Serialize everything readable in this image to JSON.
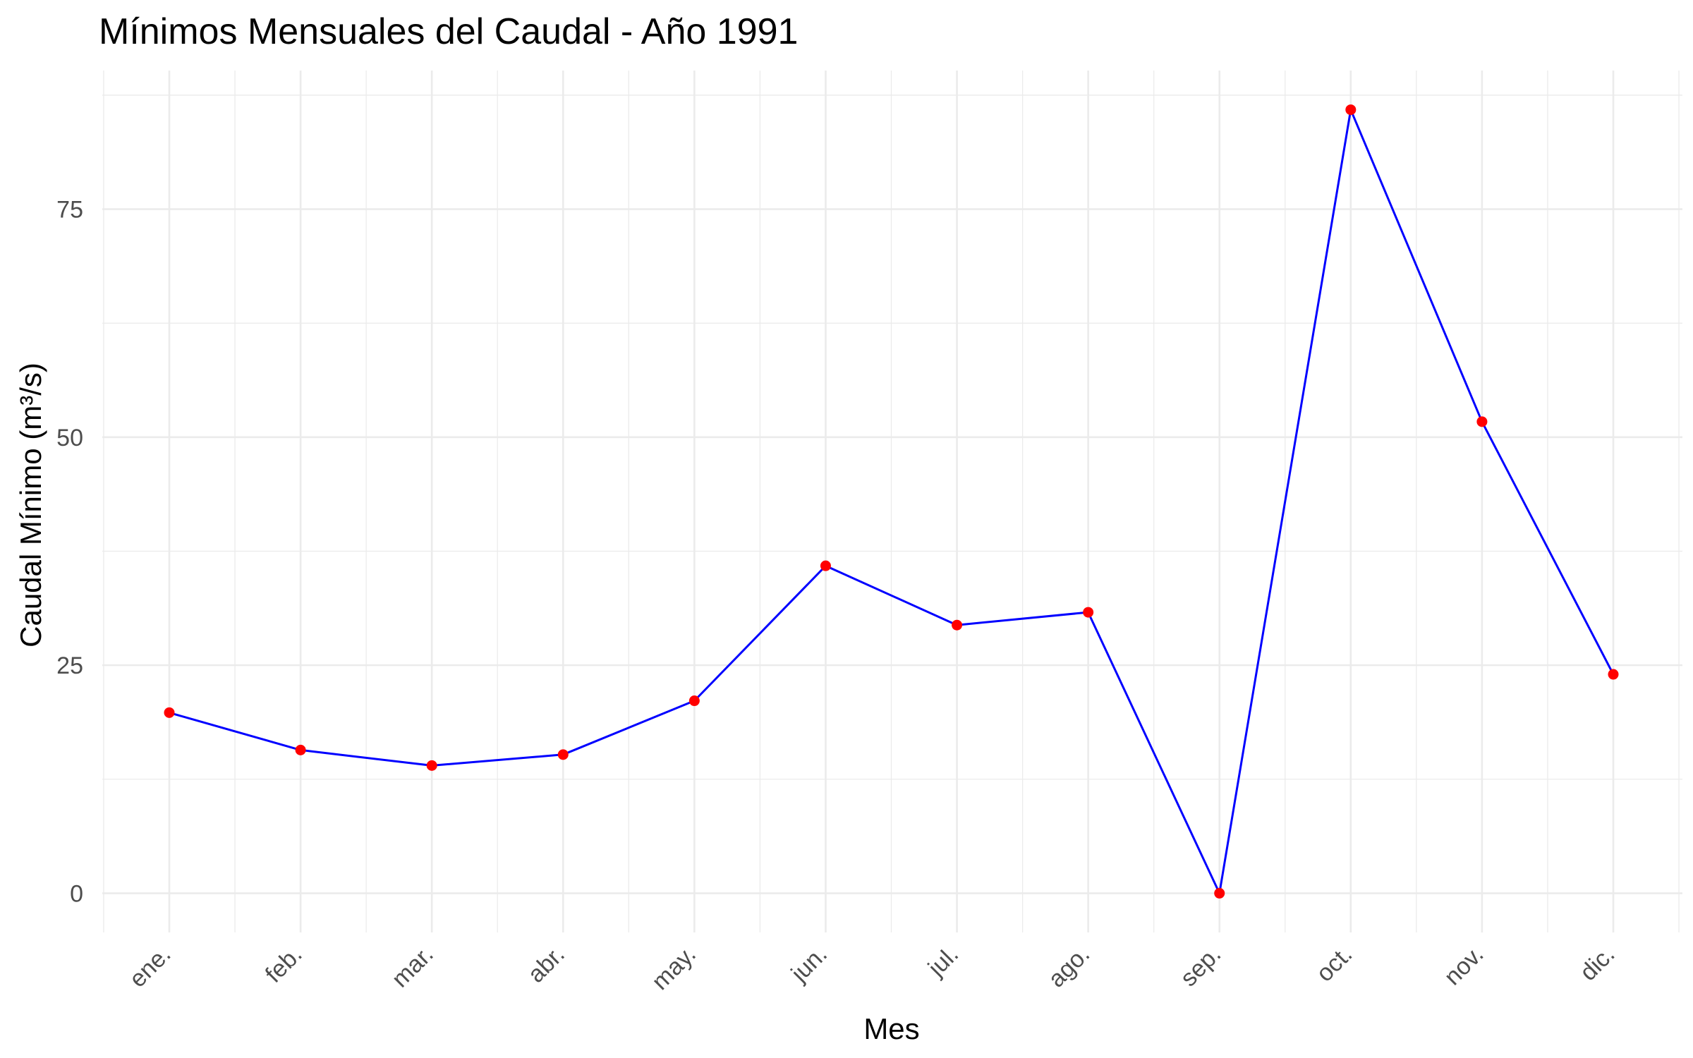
{
  "chart_data": {
    "type": "line",
    "title": "Mínimos Mensuales del Caudal - Año 1991",
    "xlabel": "Mes",
    "ylabel": "Caudal Mínimo (m³/s)",
    "categories": [
      "ene.",
      "feb.",
      "mar.",
      "abr.",
      "may.",
      "jun.",
      "jul.",
      "ago.",
      "sep.",
      "oct.",
      "nov.",
      "dic."
    ],
    "series": [
      {
        "values": [
          19.8,
          15.7,
          14.0,
          15.2,
          21.1,
          35.9,
          29.4,
          30.8,
          0.0,
          85.9,
          51.7,
          24.0
        ],
        "line_color": "#0000ff",
        "point_color": "#ff0000"
      }
    ],
    "ylim": [
      -4.3,
      90.2
    ],
    "yticks": [
      0,
      25,
      50,
      75
    ],
    "ytick_labels": [
      "0",
      "25",
      "50",
      "75"
    ],
    "grid": true,
    "legend": "none"
  }
}
